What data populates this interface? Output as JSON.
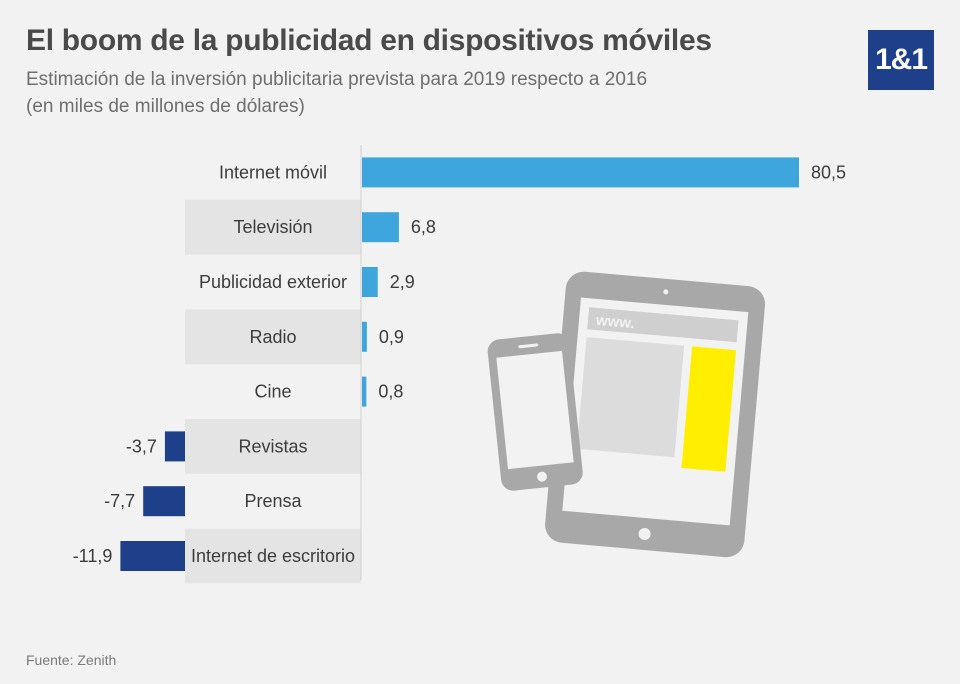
{
  "title": "El boom de la publicidad en dispositivos móviles",
  "subtitle_line1": "Estimación de la inversión publicitaria prevista para 2019 respecto a 2016",
  "subtitle_line2": "(en miles de millones de dólares)",
  "logo": "1&1",
  "source": "Fuente: Zenith",
  "device_illustration": {
    "screen_text": "www."
  },
  "colors": {
    "positive": "#3ea6dc",
    "negative": "#1e3f8a",
    "band": "#e4e4e4",
    "background": "#f2f2f2",
    "accent_yellow": "#ffee00",
    "device": "#a8a8a8"
  },
  "chart_data": {
    "type": "bar",
    "orientation": "horizontal",
    "categories": [
      "Internet móvil",
      "Televisión",
      "Publicidad exterior",
      "Radio",
      "Cine",
      "Revistas",
      "Prensa",
      "Internet de escritorio"
    ],
    "values": [
      80.5,
      6.8,
      2.9,
      0.9,
      0.8,
      -3.7,
      -7.7,
      -11.9
    ],
    "value_labels": [
      "80,5",
      "6,8",
      "2,9",
      "0,9",
      "0,8",
      "-3,7",
      "-7,7",
      "-11,9"
    ],
    "xlabel": "",
    "ylabel": "",
    "grid": false,
    "legend": "none"
  }
}
